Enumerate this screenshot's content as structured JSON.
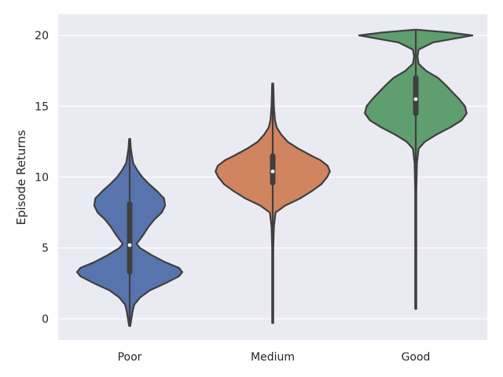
{
  "chart_data": {
    "type": "violin",
    "title": "",
    "xlabel": "",
    "ylabel": "Episode Returns",
    "ylim": [
      -1.5,
      21.5
    ],
    "yticks": [
      0,
      5,
      10,
      15,
      20
    ],
    "grid": true,
    "legend": "none",
    "background": "#eaeaf2",
    "categories": [
      "Poor",
      "Medium",
      "Good"
    ],
    "violins": [
      {
        "category": "Poor",
        "color": "#5874ae",
        "min": -0.5,
        "q1": 3.3,
        "median": 5.2,
        "q3": 8.1,
        "max": 12.7,
        "density": [
          [
            -0.5,
            0.01
          ],
          [
            0,
            0.03
          ],
          [
            0.5,
            0.05
          ],
          [
            1,
            0.08
          ],
          [
            1.5,
            0.18
          ],
          [
            2,
            0.35
          ],
          [
            2.5,
            0.62
          ],
          [
            3,
            0.86
          ],
          [
            3.3,
            0.92
          ],
          [
            3.6,
            0.86
          ],
          [
            4,
            0.62
          ],
          [
            4.5,
            0.38
          ],
          [
            5,
            0.18
          ],
          [
            5.3,
            0.12
          ],
          [
            5.6,
            0.18
          ],
          [
            6,
            0.25
          ],
          [
            6.5,
            0.33
          ],
          [
            7,
            0.43
          ],
          [
            7.5,
            0.56
          ],
          [
            8,
            0.62
          ],
          [
            8.5,
            0.6
          ],
          [
            9,
            0.48
          ],
          [
            9.5,
            0.34
          ],
          [
            10,
            0.22
          ],
          [
            10.5,
            0.13
          ],
          [
            11,
            0.06
          ],
          [
            11.5,
            0.04
          ],
          [
            12,
            0.02
          ],
          [
            12.7,
            0.01
          ]
        ]
      },
      {
        "category": "Medium",
        "color": "#d18460",
        "min": -0.3,
        "q1": 9.6,
        "median": 10.4,
        "q3": 11.5,
        "max": 16.6,
        "density": [
          [
            -0.3,
            0.01
          ],
          [
            1,
            0.01
          ],
          [
            3,
            0.01
          ],
          [
            5,
            0.01
          ],
          [
            6.5,
            0.02
          ],
          [
            7.5,
            0.05
          ],
          [
            8,
            0.22
          ],
          [
            8.5,
            0.48
          ],
          [
            9,
            0.68
          ],
          [
            9.5,
            0.85
          ],
          [
            10,
            0.95
          ],
          [
            10.4,
            1.0
          ],
          [
            10.8,
            0.96
          ],
          [
            11.2,
            0.83
          ],
          [
            11.5,
            0.68
          ],
          [
            12,
            0.45
          ],
          [
            12.5,
            0.26
          ],
          [
            13,
            0.15
          ],
          [
            13.5,
            0.07
          ],
          [
            14,
            0.04
          ],
          [
            15,
            0.02
          ],
          [
            16.6,
            0.01
          ]
        ]
      },
      {
        "category": "Good",
        "color": "#5f9e6e",
        "min": 0.7,
        "q1": 14.5,
        "median": 15.5,
        "q3": 17.0,
        "max": 20.4,
        "density": [
          [
            0.7,
            0.01
          ],
          [
            3,
            0.01
          ],
          [
            6,
            0.01
          ],
          [
            9,
            0.01
          ],
          [
            11,
            0.02
          ],
          [
            12,
            0.05
          ],
          [
            12.5,
            0.16
          ],
          [
            13,
            0.36
          ],
          [
            13.5,
            0.6
          ],
          [
            14,
            0.8
          ],
          [
            14.5,
            0.89
          ],
          [
            15,
            0.86
          ],
          [
            15.5,
            0.76
          ],
          [
            16,
            0.64
          ],
          [
            16.5,
            0.52
          ],
          [
            17,
            0.39
          ],
          [
            17.5,
            0.18
          ],
          [
            18,
            0.05
          ],
          [
            18.5,
            0.03
          ],
          [
            19,
            0.05
          ],
          [
            19.5,
            0.3
          ],
          [
            20,
            0.99
          ],
          [
            20.2,
            0.6
          ],
          [
            20.4,
            0.02
          ]
        ]
      }
    ]
  }
}
